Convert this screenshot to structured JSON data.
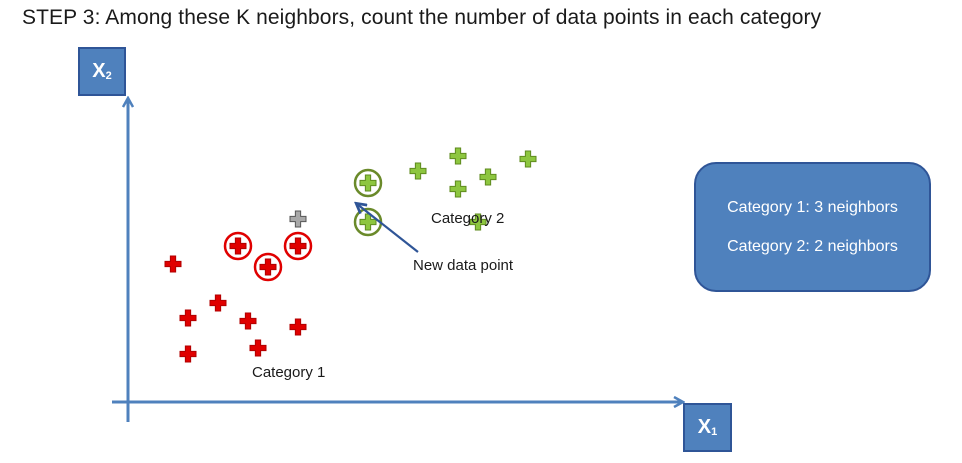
{
  "title": {
    "step": "STEP 3",
    "text": ": Among these K neighbors, count the number of data points in each category"
  },
  "axes": {
    "x_label": "X",
    "x_sub": "1",
    "y_label": "X",
    "y_sub": "2"
  },
  "labels": {
    "category1": "Category 1",
    "category2": "Category 2",
    "new_point": "New data point"
  },
  "info": {
    "line1": "Category 1: 3 neighbors",
    "line2": "Category 2: 2 neighbors"
  },
  "colors": {
    "axis": "#4f81bd",
    "category1": "#e00000",
    "category2": "#8dc63f",
    "category2_ring": "#6a8a2a",
    "new_point": "#999999",
    "arrow": "#2f5597"
  },
  "chart_data": {
    "type": "scatter",
    "xlabel": "X1",
    "ylabel": "X2",
    "series": [
      {
        "name": "Category 1",
        "points": [
          [
            1.1,
            5.2
          ],
          [
            1.7,
            5.2
          ],
          [
            1.4,
            4.5
          ],
          [
            0.45,
            4.6
          ],
          [
            0.9,
            3.3
          ],
          [
            0.6,
            2.8
          ],
          [
            1.2,
            2.7
          ],
          [
            1.7,
            2.5
          ],
          [
            0.6,
            1.6
          ],
          [
            1.3,
            1.8
          ]
        ],
        "highlighted": [
          0,
          1,
          2
        ]
      },
      {
        "name": "Category 2",
        "points": [
          [
            2.4,
            7.3
          ],
          [
            2.4,
            6.0
          ],
          [
            2.9,
            7.7
          ],
          [
            3.3,
            8.2
          ],
          [
            3.3,
            7.1
          ],
          [
            3.6,
            7.5
          ],
          [
            4.0,
            8.1
          ],
          [
            3.5,
            6.0
          ]
        ],
        "highlighted": [
          0,
          1
        ]
      },
      {
        "name": "New data point",
        "points": [
          [
            1.7,
            6.1
          ]
        ]
      }
    ]
  }
}
